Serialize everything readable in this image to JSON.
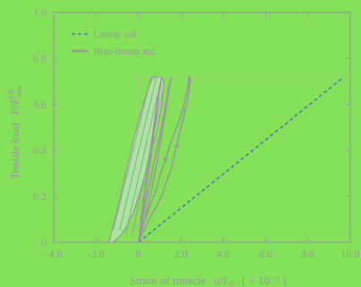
{
  "chart_data": {
    "type": "line",
    "title": "",
    "xlabel": "Strain of muscle",
    "xlabel_math": "u/L",
    "xlabel_math_sub": "0",
    "xlabel_unit": "[ × 10⁻³ ]",
    "ylabel": "Tensile load",
    "ylabel_math": "F/F",
    "ylabel_math_sub": "max",
    "ylabel_math_sup": "CE",
    "xlim": [
      -4.0,
      10.0
    ],
    "ylim": [
      0,
      1.0
    ],
    "xticks": [
      -4.0,
      -2.0,
      0,
      2.0,
      4.0,
      6.0,
      8.0,
      10.0
    ],
    "xtick_labels": [
      "-4.0",
      "-2.0",
      "0",
      "2.0",
      "4.0",
      "6.0",
      "8.0",
      "10.0"
    ],
    "yticks": [
      0,
      0.2,
      0.4,
      0.6,
      0.8,
      1.0
    ],
    "ytick_labels": [
      "0",
      "0.2",
      "0.4",
      "0.6",
      "0.8",
      "1.0"
    ],
    "grid": false,
    "legend_position": "top-left",
    "colors": {
      "background": "#85e05a",
      "axes": "#9a9a9a",
      "linear": "#4a7fb0",
      "nonlinear": "#999999",
      "hysteresis_fill": "#a8e6a0",
      "reference": "#bfbf9a"
    },
    "series": [
      {
        "name": "Linear sol.",
        "style": "dashed",
        "x": [
          0.0,
          9.7
        ],
        "y": [
          0.0,
          0.72
        ]
      },
      {
        "name": "Non-linear sol.",
        "style": "solid",
        "loops": [
          {
            "x": [
              0.0,
              0.25,
              0.5,
              0.8,
              1.1,
              1.3,
              1.55,
              1.7,
              1.85,
              2.0,
              2.2,
              2.35,
              2.45,
              2.4,
              2.3,
              2.15,
              2.0,
              1.8,
              1.55,
              1.3,
              1.05,
              0.8,
              0.5,
              0.2,
              0.0
            ],
            "y": [
              0.0,
              0.05,
              0.1,
              0.15,
              0.2,
              0.26,
              0.32,
              0.38,
              0.44,
              0.5,
              0.57,
              0.64,
              0.71,
              0.72,
              0.66,
              0.6,
              0.55,
              0.5,
              0.44,
              0.37,
              0.3,
              0.22,
              0.15,
              0.07,
              0.0
            ]
          },
          {
            "x": [
              0.0,
              0.3,
              0.6,
              0.9,
              1.15,
              1.4,
              1.55,
              1.4,
              1.2,
              0.95,
              0.7,
              0.45,
              0.2,
              0.0
            ],
            "y": [
              0.0,
              0.1,
              0.22,
              0.36,
              0.5,
              0.64,
              0.72,
              0.66,
              0.55,
              0.44,
              0.33,
              0.22,
              0.1,
              0.0
            ]
          },
          {
            "x": [
              0.0,
              0.2,
              0.4,
              0.6,
              0.8,
              1.0,
              1.1,
              0.95,
              0.75,
              0.55,
              0.35,
              0.15,
              0.0
            ],
            "y": [
              0.0,
              0.12,
              0.25,
              0.38,
              0.52,
              0.66,
              0.72,
              0.65,
              0.52,
              0.4,
              0.27,
              0.13,
              0.0
            ]
          }
        ]
      }
    ],
    "hysteresis_band": {
      "x": [
        -1.4,
        -1.0,
        -0.6,
        -0.25,
        0.1,
        0.5,
        0.7,
        1.1,
        1.2,
        1.1,
        0.85,
        0.5,
        0.15,
        -0.2,
        -0.55,
        -0.85,
        -1.2,
        -1.4
      ],
      "y": [
        0.0,
        0.14,
        0.3,
        0.44,
        0.56,
        0.68,
        0.72,
        0.72,
        0.7,
        0.6,
        0.48,
        0.36,
        0.24,
        0.14,
        0.07,
        0.03,
        0.0,
        0.0
      ]
    },
    "reference_lines": {
      "x_line": 0.0,
      "y_line": 0.72
    }
  }
}
